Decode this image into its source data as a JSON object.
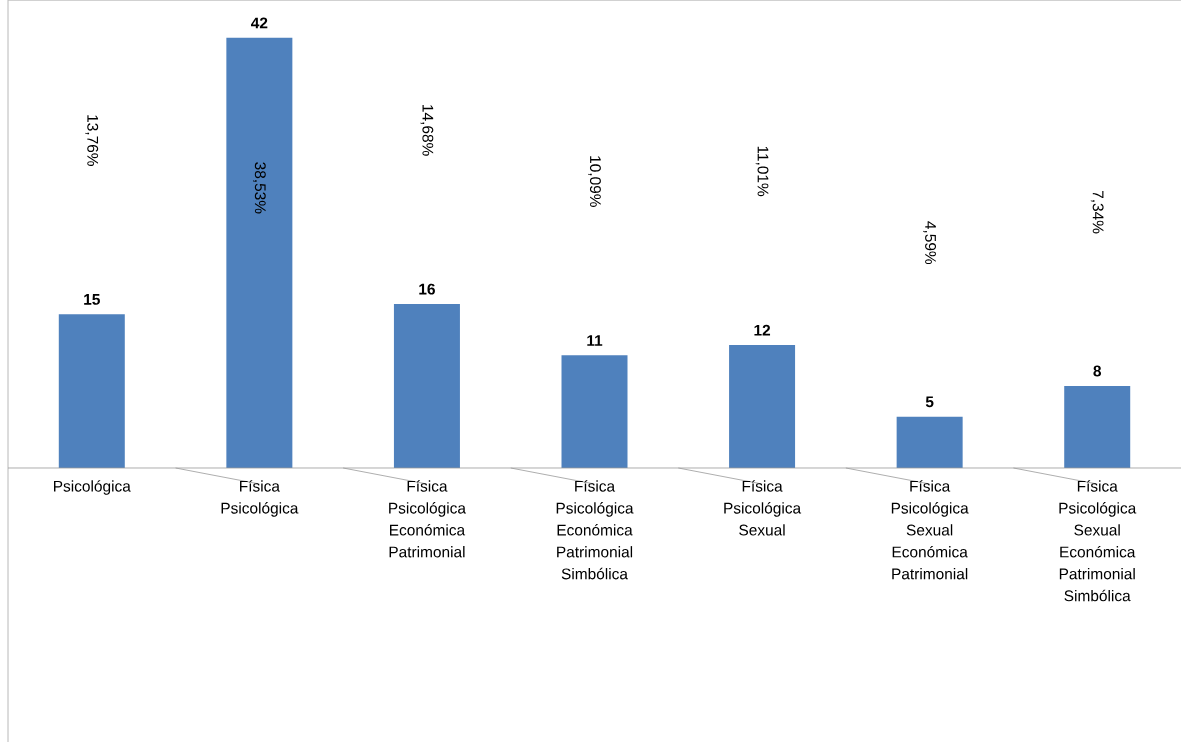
{
  "chart_data": {
    "type": "bar",
    "categories": [
      "Psicológica",
      "Física Psicológica",
      "Física Psicológica Económica Patrimonial",
      "Física Psicológica Económica Patrimonial Simbólica",
      "Física Psicológica Sexual",
      "Física Psicológica Sexual Económica Patrimonial",
      "Física Psicológica Sexual Económica Patrimonial Simbólica"
    ],
    "values": [
      15,
      42,
      16,
      11,
      12,
      5,
      8
    ],
    "color": "#4f81bd",
    "data_labels": true,
    "annotations": [
      "13,76%",
      "38,53%",
      "14,68%",
      "10,09%",
      "11,01%",
      "4,59%",
      "7,34%"
    ]
  }
}
